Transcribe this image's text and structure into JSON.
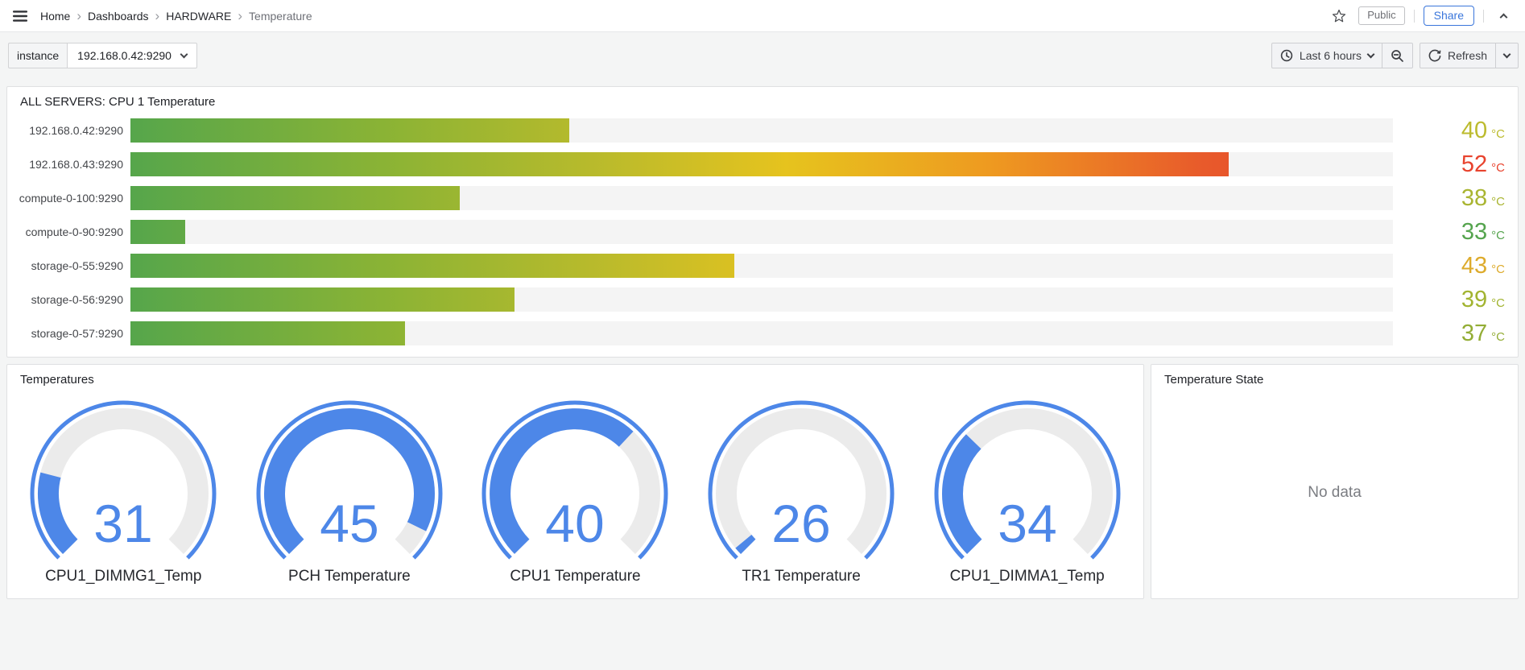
{
  "nav": {
    "breadcrumbs": [
      {
        "label": "Home",
        "current": false
      },
      {
        "label": "Dashboards",
        "current": false
      },
      {
        "label": "HARDWARE",
        "current": false
      },
      {
        "label": "Temperature",
        "current": true
      }
    ],
    "public_badge": "Public",
    "share_label": "Share"
  },
  "toolbar": {
    "variable_label": "instance",
    "variable_value": "192.168.0.42:9290",
    "time_range_label": "Last 6 hours",
    "refresh_label": "Refresh"
  },
  "colors": {
    "accent_blue": "#4d87e8",
    "gauge_track": "#ebebeb",
    "bar_track": "#f4f4f4",
    "bar_gradient": "linear-gradient(to right, #56a64b 0%, #8ab335 20%, #bcbb2b 38%, #e6c31e 52%, #ee9a20 68%, #e85a2b 85%, #e23a2a 100%)"
  },
  "chart_data": [
    {
      "type": "bar",
      "title": "ALL SERVERS: CPU 1 Temperature",
      "orientation": "horizontal",
      "unit": "°C",
      "min": 32,
      "max": 55,
      "categories": [
        "192.168.0.42:9290",
        "192.168.0.43:9290",
        "compute-0-100:9290",
        "compute-0-90:9290",
        "storage-0-55:9290",
        "storage-0-56:9290",
        "storage-0-57:9290"
      ],
      "values": [
        40,
        52,
        38,
        33,
        43,
        39,
        37
      ],
      "value_colors": [
        "#bcbb2e",
        "#e8432e",
        "#a9b531",
        "#55a44e",
        "#ddab2c",
        "#a2b431",
        "#93ad35"
      ]
    },
    {
      "type": "gauge",
      "title": "Temperatures",
      "unit": "°C",
      "min_angle_deg": 225,
      "sweep_deg": 270,
      "gauges": [
        {
          "label": "CPU1_DIMMG1_Temp",
          "value": 31,
          "fill_pct": 22
        },
        {
          "label": "PCH Temperature",
          "value": 45,
          "fill_pct": 93
        },
        {
          "label": "CPU1 Temperature",
          "value": 40,
          "fill_pct": 66
        },
        {
          "label": "TR1 Temperature",
          "value": 26,
          "fill_pct": 2
        },
        {
          "label": "CPU1_DIMMA1_Temp",
          "value": 34,
          "fill_pct": 33
        }
      ]
    },
    {
      "type": "none",
      "title": "Temperature State",
      "message": "No data"
    }
  ]
}
